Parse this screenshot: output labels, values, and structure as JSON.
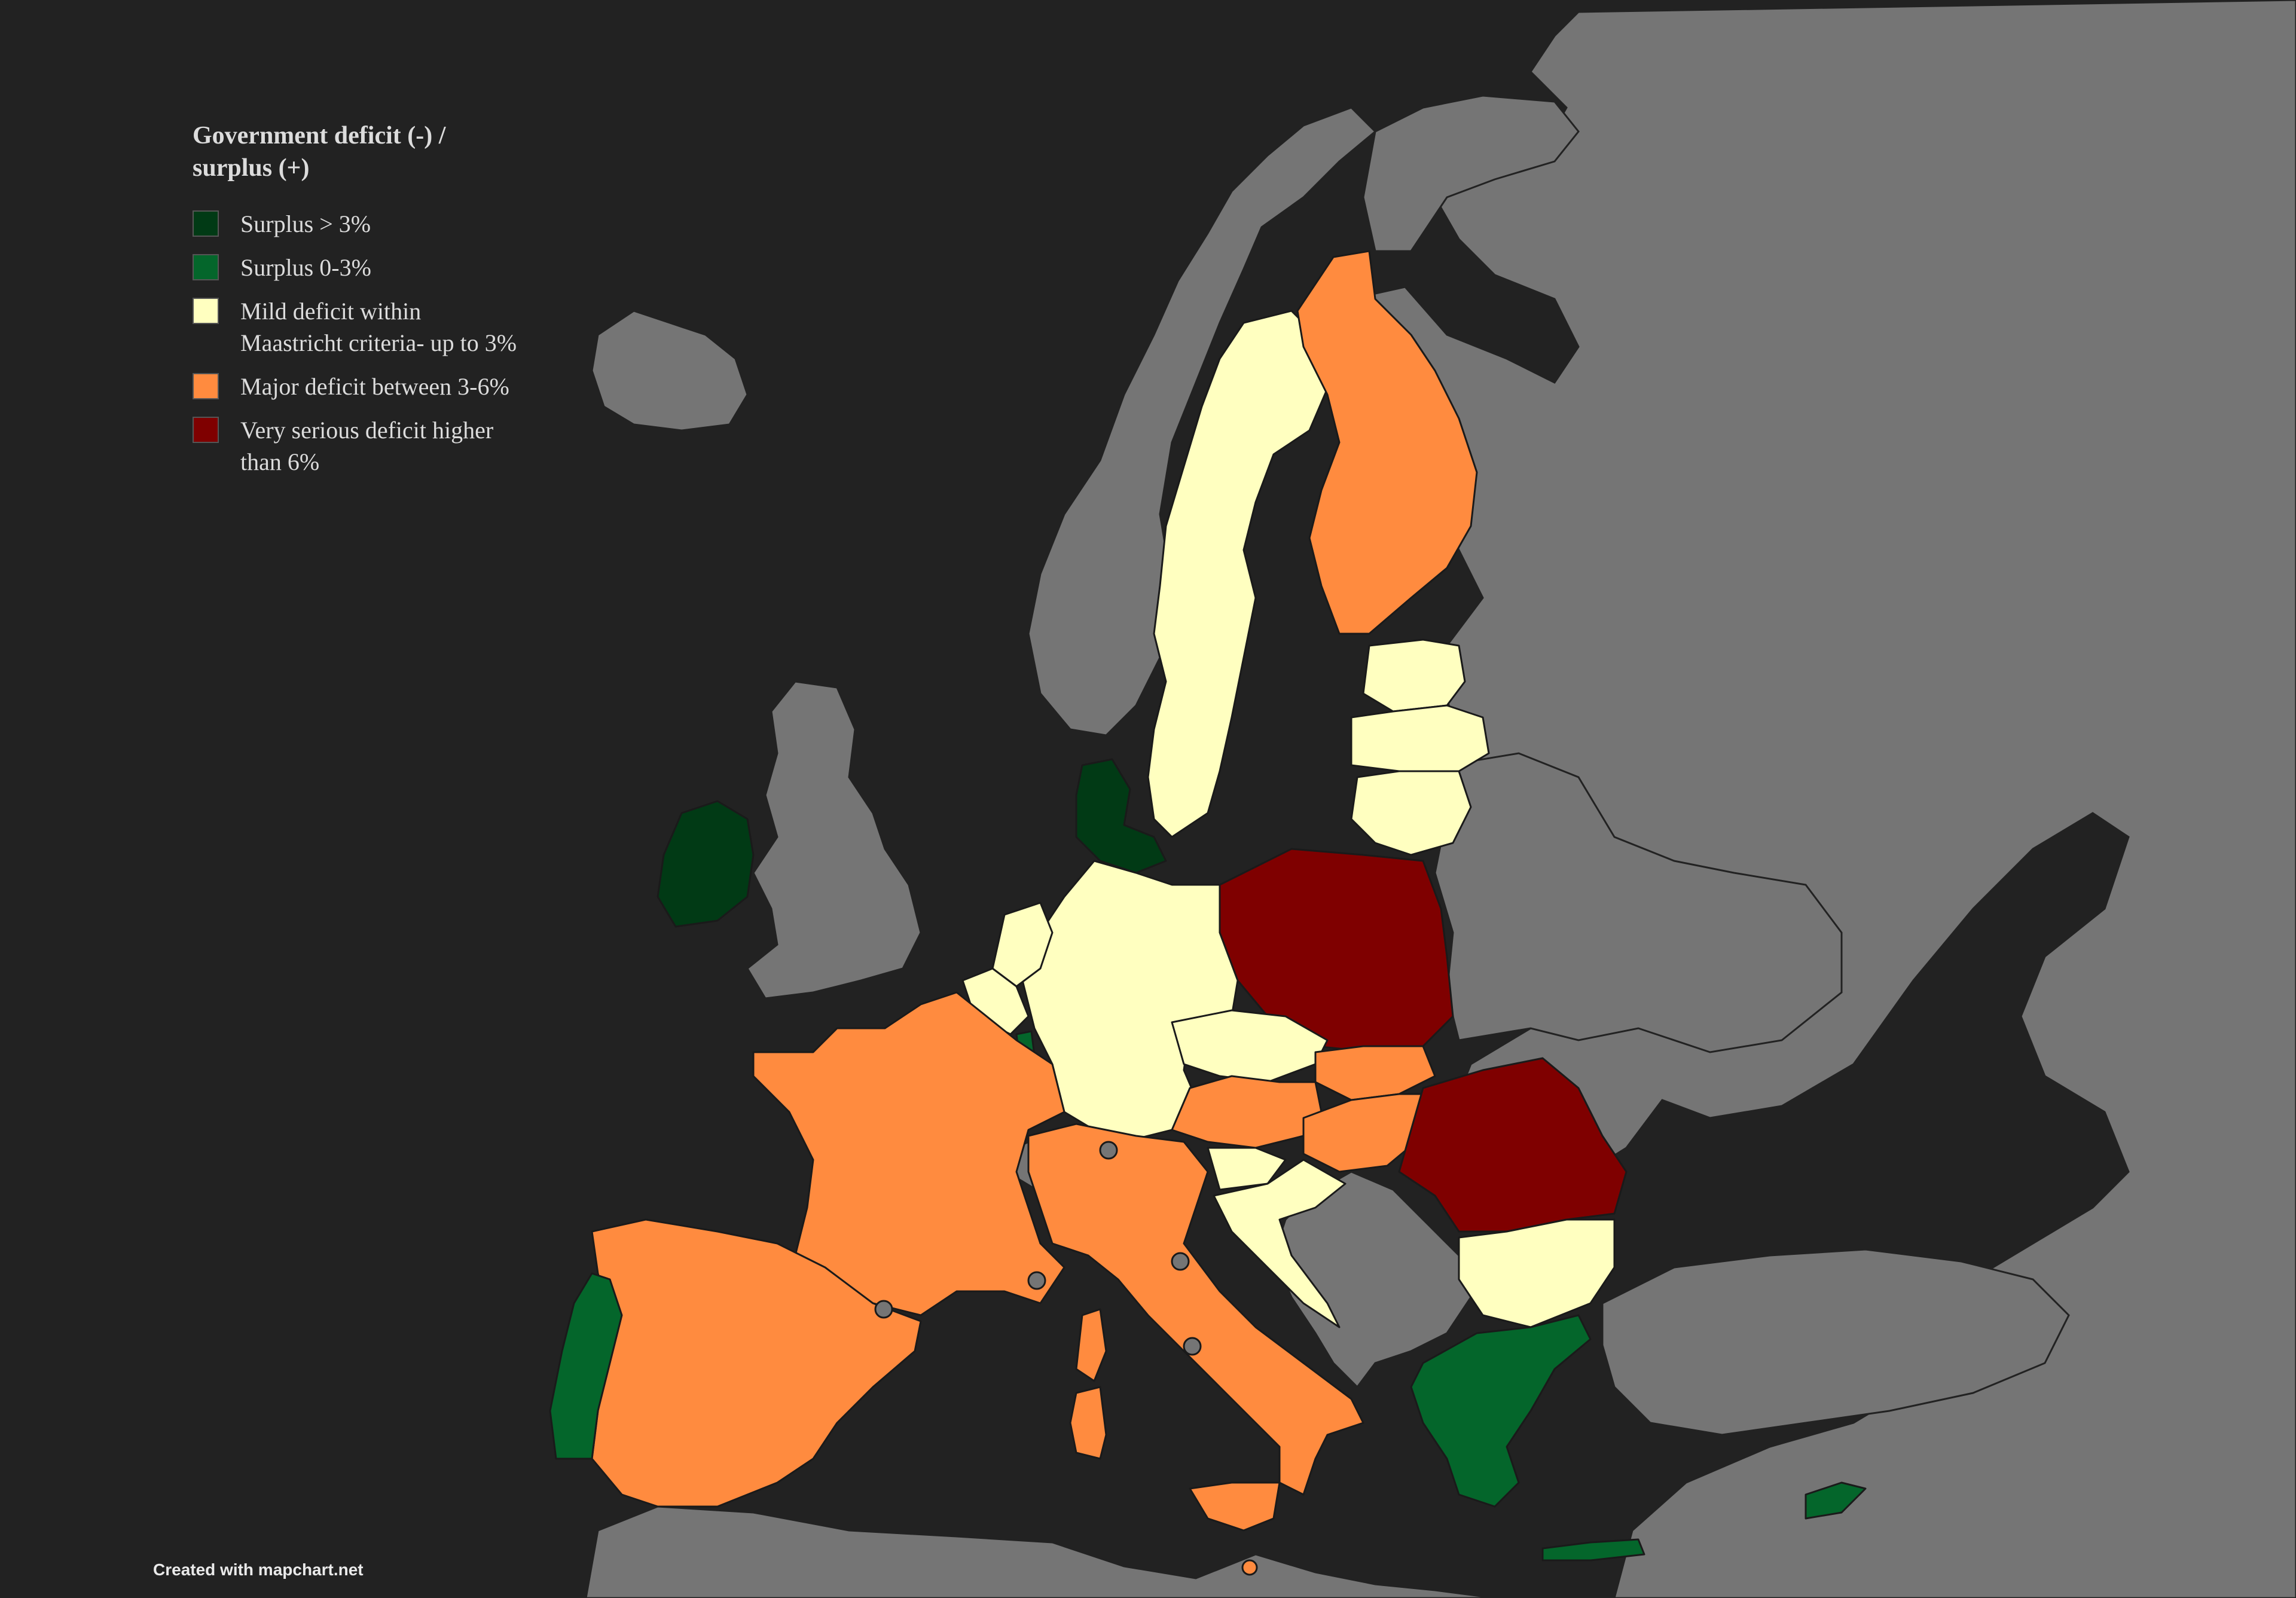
{
  "legend": {
    "title": "Government deficit (-) / surplus (+)",
    "items": [
      {
        "label": "Surplus > 3%",
        "color": "#013A15"
      },
      {
        "label": "Surplus 0-3%",
        "color": "#04662B"
      },
      {
        "label": "Mild deficit within Maastricht criteria- up to 3%",
        "color": "#FFFFC0"
      },
      {
        "label": "Major deficit between 3-6%",
        "color": "#FF8B3F"
      },
      {
        "label": "Very serious deficit higher than 6%",
        "color": "#7F0000"
      }
    ]
  },
  "credit": "Created with mapchart.net",
  "colors": {
    "sea": "#222222",
    "non_member": "#757575",
    "border": "#1a1a1a"
  },
  "countries": [
    {
      "name": "Ireland",
      "category": "Surplus > 3%"
    },
    {
      "name": "Denmark",
      "category": "Surplus > 3%"
    },
    {
      "name": "Portugal",
      "category": "Surplus 0-3%"
    },
    {
      "name": "Luxembourg",
      "category": "Surplus 0-3%"
    },
    {
      "name": "Greece",
      "category": "Surplus 0-3%"
    },
    {
      "name": "Cyprus",
      "category": "Surplus 0-3%"
    },
    {
      "name": "Sweden",
      "category": "Mild deficit within Maastricht criteria- up to 3%"
    },
    {
      "name": "Estonia",
      "category": "Mild deficit within Maastricht criteria- up to 3%"
    },
    {
      "name": "Latvia",
      "category": "Mild deficit within Maastricht criteria- up to 3%"
    },
    {
      "name": "Lithuania",
      "category": "Mild deficit within Maastricht criteria- up to 3%"
    },
    {
      "name": "Netherlands",
      "category": "Mild deficit within Maastricht criteria- up to 3%"
    },
    {
      "name": "Belgium",
      "category": "Mild deficit within Maastricht criteria- up to 3%"
    },
    {
      "name": "Germany",
      "category": "Mild deficit within Maastricht criteria- up to 3%"
    },
    {
      "name": "Czechia",
      "category": "Mild deficit within Maastricht criteria- up to 3%"
    },
    {
      "name": "Slovenia",
      "category": "Mild deficit within Maastricht criteria- up to 3%"
    },
    {
      "name": "Croatia",
      "category": "Mild deficit within Maastricht criteria- up to 3%"
    },
    {
      "name": "Bulgaria",
      "category": "Mild deficit within Maastricht criteria- up to 3%"
    },
    {
      "name": "Finland",
      "category": "Major deficit between 3-6%"
    },
    {
      "name": "France",
      "category": "Major deficit between 3-6%"
    },
    {
      "name": "Spain",
      "category": "Major deficit between 3-6%"
    },
    {
      "name": "Italy",
      "category": "Major deficit between 3-6%"
    },
    {
      "name": "Austria",
      "category": "Major deficit between 3-6%"
    },
    {
      "name": "Slovakia",
      "category": "Major deficit between 3-6%"
    },
    {
      "name": "Hungary",
      "category": "Major deficit between 3-6%"
    },
    {
      "name": "Malta",
      "category": "Major deficit between 3-6%"
    },
    {
      "name": "Poland",
      "category": "Very serious deficit higher than 6%"
    },
    {
      "name": "Romania",
      "category": "Very serious deficit higher than 6%"
    }
  ]
}
